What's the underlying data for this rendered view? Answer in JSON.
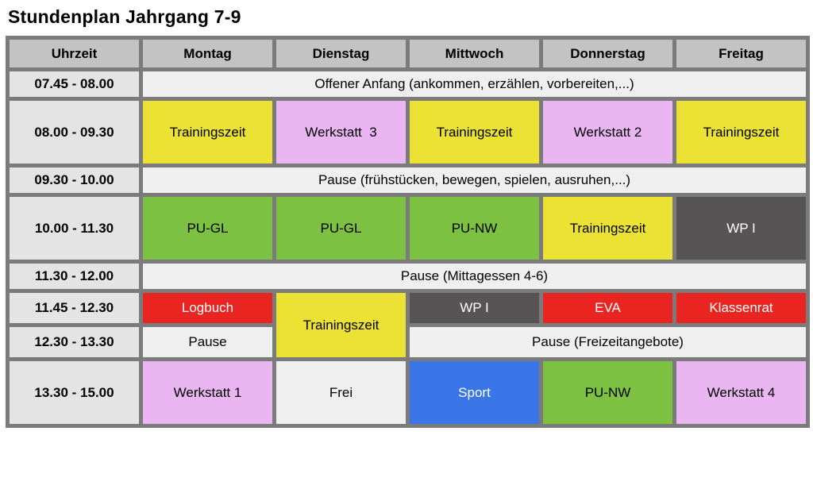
{
  "title": "Stundenplan Jahrgang 7-9",
  "colors": {
    "headerBg": "#c3c3c3",
    "timeBg": "#e4e4e4",
    "pauseBg": "#efefef",
    "yellow": "#ebe233",
    "pink": "#e9b6f1",
    "green": "#7cc142",
    "red": "#ea2420",
    "darkgray": "#565454",
    "blue": "#3b76e8",
    "border": "#7b7b7b",
    "white": "#ffffff"
  },
  "header": {
    "time": "Uhrzeit",
    "days": [
      "Montag",
      "Dienstag",
      "Mittwoch",
      "Donnerstag",
      "Freitag"
    ]
  },
  "rows": {
    "r1": {
      "time": "07.45 - 08.00",
      "full": "Offener Anfang (ankommen, erzählen, vorbereiten,...)"
    },
    "r2": {
      "time": "08.00 - 09.30",
      "mo": "Trainingszeit",
      "di": "Werkstatt  3",
      "mi": "Trainingszeit",
      "do": "Werkstatt 2",
      "fr": "Trainingszeit"
    },
    "r3": {
      "time": "09.30 - 10.00",
      "full": "Pause (frühstücken, bewegen, spielen, ausruhen,...)"
    },
    "r4": {
      "time": "10.00 - 11.30",
      "mo": "PU-GL",
      "di": "PU-GL",
      "mi": "PU-NW",
      "do": "Trainingszeit",
      "fr": "WP I"
    },
    "r5": {
      "time": "11.30 - 12.00",
      "full": "Pause (Mittagessen 4-6)"
    },
    "r6": {
      "time": "11.45 - 12.30",
      "mo": "Logbuch",
      "di": "Trainingszeit",
      "mi": "WP I",
      "do": "EVA",
      "fr": "Klassenrat"
    },
    "r7": {
      "time": "12.30 - 13.30",
      "mo": "Pause",
      "rest": "Pause (Freizeitangebote)"
    },
    "r8": {
      "time": "13.30 - 15.00",
      "mo": "Werkstatt 1",
      "di": "Frei",
      "mi": "Sport",
      "do": "PU-NW",
      "fr": "Werkstatt 4"
    }
  }
}
